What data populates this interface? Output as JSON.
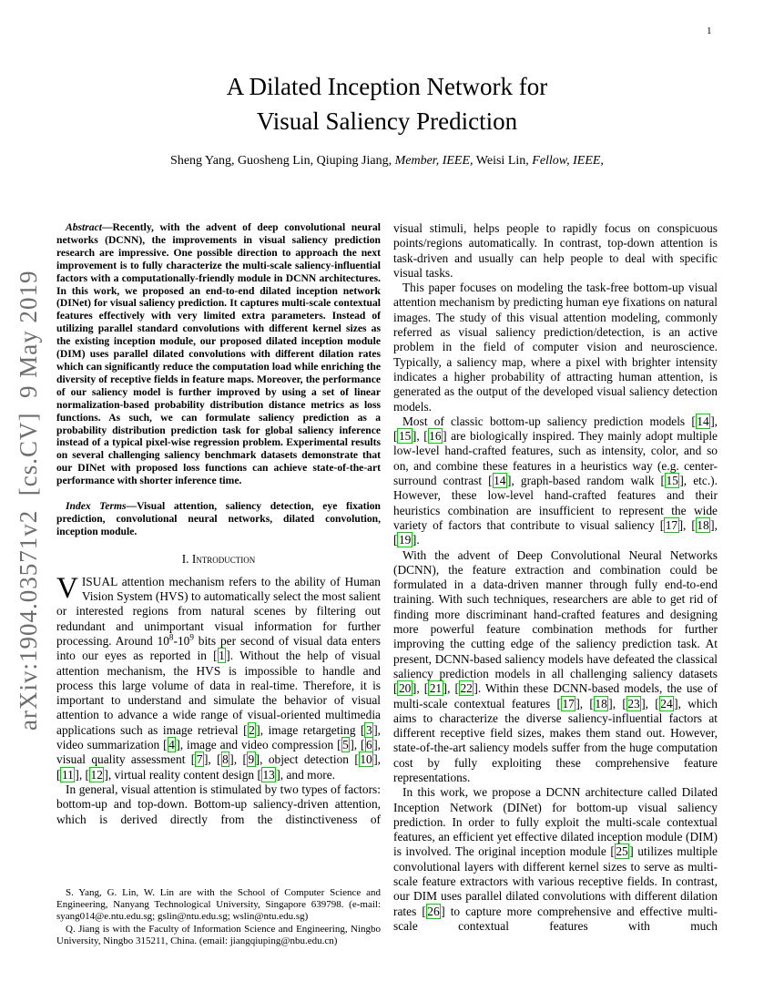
{
  "page": {
    "number": "1",
    "arxiv_stamp": "arXiv:1904.03571v2  [cs.CV]  9 May 2019"
  },
  "colors": {
    "citation_box": "#00cc00",
    "stamp_gray": "#6e6e6e"
  },
  "header": {
    "title_line1": "A Dilated Inception Network for",
    "title_line2": "Visual Saliency Prediction",
    "authors": [
      {
        "text": "Sheng Yang, Guosheng Lin, Qiuping Jiang, ",
        "italic": false
      },
      {
        "text": "Member, IEEE,",
        "italic": true
      },
      {
        "text": " Weisi Lin, ",
        "italic": false
      },
      {
        "text": "Fellow, IEEE,",
        "italic": true
      }
    ]
  },
  "abstract": {
    "label": "Abstract—",
    "text": "Recently, with the advent of deep convolutional neural networks (DCNN), the improvements in visual saliency prediction research are impressive. One possible direction to approach the next improvement is to fully characterize the multi-scale saliency-influential factors with a computationally-friendly module in DCNN architectures. In this work, we proposed an end-to-end dilated inception network (DINet) for visual saliency prediction. It captures multi-scale contextual features effectively with very limited extra parameters. Instead of utilizing parallel standard convolutions with different kernel sizes as the existing inception module, our proposed dilated inception module (DIM) uses parallel dilated convolutions with different dilation rates which can significantly reduce the computation load while enriching the diversity of receptive fields in feature maps. Moreover, the performance of our saliency model is further improved by using a set of linear normalization-based probability distribution distance metrics as loss functions. As such, we can formulate saliency prediction as a probability distribution prediction task for global saliency inference instead of a typical pixel-wise regression problem. Experimental results on several challenging saliency benchmark datasets demonstrate that our DINet with proposed loss functions can achieve state-of-the-art performance with shorter inference time."
  },
  "index_terms": {
    "label": "Index Terms—",
    "text": "Visual attention, saliency detection, eye fixation prediction, convolutional neural networks, dilated convolution, inception module."
  },
  "intro": {
    "heading": "I. Introduction",
    "dropcap": "V",
    "p1_rest": "ISUAL attention mechanism refers to the ability of Human Vision System (HVS) to automatically select the most salient or interested regions from natural scenes by filtering out redundant and unimportant visual information for further processing. Around 10^{8}-10^{9} bits per second of visual data enters into our eyes as reported in [1]. Without the help of visual attention mechanism, the HVS is impossible to handle and process this large volume of data in real-time. Therefore, it is important to understand and simulate the behavior of visual attention to advance a wide range of visual-oriented multimedia applications such as image retrieval [2], image retargeting [3], video summarization [4], image and video compression [5], [6], visual quality assessment [7], [8], [9], object detection [10], [11], [12], virtual reality content design [13], and more.",
    "p2": "In general, visual attention is stimulated by two types of factors: bottom-up and top-down. Bottom-up saliency-driven attention, which is derived directly from the distinctiveness of"
  },
  "right_column": {
    "paragraphs": [
      "visual stimuli, helps people to rapidly focus on conspicuous points/regions automatically. In contrast, top-down attention is task-driven and usually can help people to deal with specific visual tasks.",
      "This paper focuses on modeling the task-free bottom-up visual attention mechanism by predicting human eye fixations on natural images. The study of this visual attention modeling, commonly referred as visual saliency prediction/detection, is an active problem in the field of computer vision and neuroscience. Typically, a saliency map, where a pixel with brighter intensity indicates a higher probability of attracting human attention, is generated as the output of the developed visual saliency detection models.",
      "Most of classic bottom-up saliency prediction models [14], [15], [16] are biologically inspired. They mainly adopt multiple low-level hand-crafted features, such as intensity, color, and so on, and combine these features in a heuristics way (e.g. center-surround contrast [14], graph-based random walk [15], etc.). However, these low-level hand-crafted features and their heuristics combination are insufficient to represent the wide variety of factors that contribute to visual saliency [17], [18], [19].",
      "With the advent of Deep Convolutional Neural Networks (DCNN), the feature extraction and combination could be formulated in a data-driven manner through fully end-to-end training. With such techniques, researchers are able to get rid of finding more discriminant hand-crafted features and designing more powerful feature combination methods for further improving the cutting edge of the saliency prediction task. At present, DCNN-based saliency models have defeated the classical saliency prediction models in all challenging saliency datasets [20], [21], [22]. Within these DCNN-based models, the use of multi-scale contextual features [17], [18], [23], [24], which aims to characterize the diverse saliency-influential factors at different receptive field sizes, makes them stand out. However, state-of-the-art saliency models suffer from the huge computation cost by fully exploiting these comprehensive feature representations.",
      "In this work, we propose a DCNN architecture called Dilated Inception Network (DINet) for bottom-up visual saliency prediction. In order to fully exploit the multi-scale contextual features, an efficient yet effective dilated inception module (DIM) is involved. The original inception module [25] utilizes multiple convolutional layers with different kernel sizes to serve as multi-scale feature extractors with various receptive fields. In contrast, our DIM uses parallel dilated convolutions with different dilation rates [26] to capture more comprehensive and effective multi-scale contextual features with much"
    ]
  },
  "footnote": {
    "p1": "S. Yang, G. Lin, W. Lin are with the School of Computer Science and Engineering, Nanyang Technological University, Singapore 639798. (e-mail: syang014@e.ntu.edu.sg; gslin@ntu.edu.sg; wslin@ntu.edu.sg)",
    "p2": "Q. Jiang is with the Faculty of Information Science and Engineering, Ningbo University, Ningbo 315211, China. (email: jiangqiuping@nbu.edu.cn)"
  }
}
